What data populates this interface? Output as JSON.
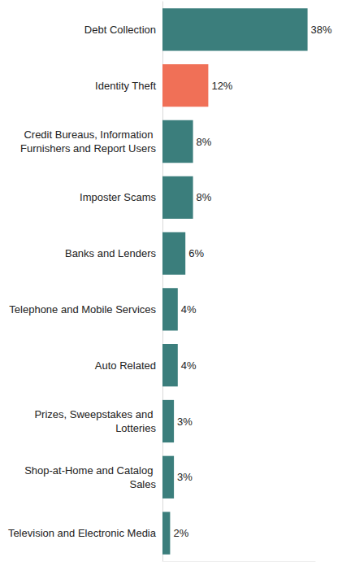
{
  "chart_data": {
    "type": "bar",
    "orientation": "horizontal",
    "categories": [
      "Debt Collection",
      "Identity Theft",
      "Credit Bureaus, Information Furnishers and Report Users",
      "Imposter Scams",
      "Banks and Lenders",
      "Telephone and Mobile Services",
      "Auto Related",
      "Prizes, Sweepstakes and Lotteries",
      "Shop-at-Home and Catalog Sales",
      "Television and Electronic Media"
    ],
    "values": [
      38,
      12,
      8,
      8,
      6,
      4,
      4,
      3,
      3,
      2
    ],
    "value_labels": [
      "38%",
      "12%",
      "8%",
      "8%",
      "6%",
      "4%",
      "4%",
      "3%",
      "3%",
      "2%"
    ],
    "colors": [
      "#3b7e7c",
      "#f07057",
      "#3b7e7c",
      "#3b7e7c",
      "#3b7e7c",
      "#3b7e7c",
      "#3b7e7c",
      "#3b7e7c",
      "#3b7e7c",
      "#3b7e7c"
    ],
    "xlim": [
      0,
      40
    ],
    "data_labels": true,
    "tick_labels": "y",
    "grid": false
  }
}
